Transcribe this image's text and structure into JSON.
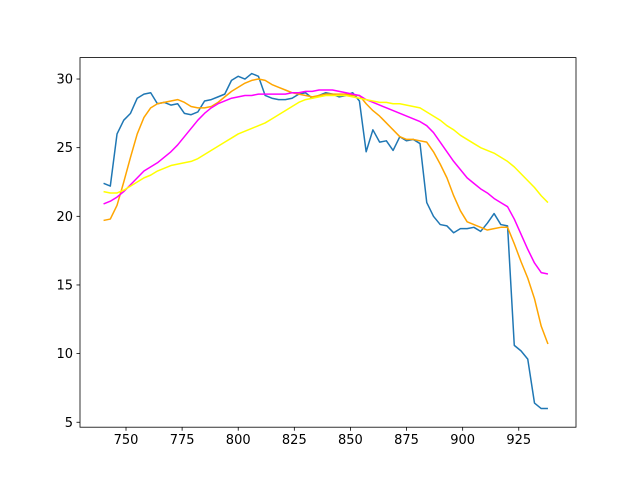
{
  "chart_data": {
    "type": "line",
    "x": [
      740,
      743,
      746,
      749,
      752,
      755,
      758,
      761,
      764,
      767,
      770,
      773,
      776,
      779,
      782,
      785,
      788,
      791,
      794,
      797,
      800,
      803,
      806,
      809,
      812,
      815,
      818,
      821,
      824,
      827,
      830,
      833,
      836,
      839,
      842,
      845,
      848,
      851,
      854,
      857,
      860,
      863,
      866,
      869,
      872,
      875,
      878,
      881,
      884,
      887,
      890,
      893,
      896,
      899,
      902,
      905,
      908,
      911,
      914,
      917,
      920,
      923,
      926,
      929,
      932,
      935,
      938
    ],
    "series": [
      {
        "color": "#1f77b4",
        "values": [
          22.4,
          22.2,
          26.0,
          27.0,
          27.5,
          28.6,
          28.9,
          29.0,
          28.2,
          28.3,
          28.1,
          28.2,
          27.5,
          27.4,
          27.6,
          28.4,
          28.5,
          28.7,
          28.9,
          29.9,
          30.2,
          30.0,
          30.4,
          30.2,
          28.8,
          28.6,
          28.5,
          28.5,
          28.6,
          28.9,
          29.0,
          28.6,
          28.8,
          29.0,
          28.9,
          28.7,
          28.8,
          29.0,
          28.4,
          24.7,
          26.3,
          25.4,
          25.5,
          24.8,
          25.8,
          25.5,
          25.6,
          25.3,
          21.0,
          20.0,
          19.4,
          19.3,
          18.8,
          19.1,
          19.1,
          19.2,
          18.9,
          19.5,
          20.2,
          19.4,
          19.3,
          10.6,
          10.2,
          9.6,
          6.4,
          6.0,
          6.0
        ]
      },
      {
        "color": "#ffa500",
        "values": [
          19.7,
          19.8,
          20.8,
          22.5,
          24.3,
          26.0,
          27.2,
          27.9,
          28.2,
          28.3,
          28.4,
          28.5,
          28.3,
          28.0,
          27.9,
          27.9,
          28.0,
          28.3,
          28.7,
          29.1,
          29.4,
          29.7,
          29.9,
          30.0,
          29.9,
          29.6,
          29.4,
          29.2,
          29.0,
          28.9,
          28.8,
          28.7,
          28.8,
          28.9,
          28.9,
          28.9,
          28.9,
          28.8,
          28.8,
          28.2,
          27.7,
          27.3,
          26.8,
          26.3,
          25.8,
          25.6,
          25.6,
          25.5,
          25.4,
          24.7,
          23.8,
          22.8,
          21.5,
          20.4,
          19.6,
          19.4,
          19.2,
          19.0,
          19.1,
          19.2,
          19.2,
          18.0,
          16.7,
          15.5,
          14.0,
          12.0,
          10.7
        ]
      },
      {
        "color": "#ff00ff",
        "values": [
          20.9,
          21.1,
          21.4,
          21.8,
          22.3,
          22.8,
          23.3,
          23.6,
          23.9,
          24.3,
          24.7,
          25.2,
          25.8,
          26.4,
          27.0,
          27.5,
          27.9,
          28.2,
          28.4,
          28.6,
          28.7,
          28.8,
          28.8,
          28.9,
          28.9,
          28.9,
          28.9,
          28.9,
          29.0,
          29.0,
          29.1,
          29.1,
          29.2,
          29.2,
          29.2,
          29.1,
          29.0,
          28.9,
          28.8,
          28.5,
          28.3,
          28.1,
          27.9,
          27.7,
          27.5,
          27.3,
          27.1,
          26.9,
          26.6,
          26.1,
          25.4,
          24.7,
          24.0,
          23.4,
          22.8,
          22.4,
          22.0,
          21.7,
          21.3,
          21.0,
          20.7,
          19.8,
          18.7,
          17.6,
          16.6,
          15.9,
          15.8
        ]
      },
      {
        "color": "#ffff00",
        "values": [
          21.8,
          21.7,
          21.7,
          21.9,
          22.2,
          22.5,
          22.8,
          23.0,
          23.3,
          23.5,
          23.7,
          23.8,
          23.9,
          24.0,
          24.2,
          24.5,
          24.8,
          25.1,
          25.4,
          25.7,
          26.0,
          26.2,
          26.4,
          26.6,
          26.8,
          27.1,
          27.4,
          27.7,
          28.0,
          28.3,
          28.5,
          28.6,
          28.7,
          28.8,
          28.8,
          28.8,
          28.8,
          28.7,
          28.6,
          28.5,
          28.4,
          28.3,
          28.3,
          28.2,
          28.2,
          28.1,
          28.0,
          27.9,
          27.6,
          27.3,
          27.0,
          26.6,
          26.3,
          25.9,
          25.6,
          25.3,
          25.0,
          24.8,
          24.6,
          24.3,
          24.0,
          23.6,
          23.1,
          22.6,
          22.1,
          21.5,
          21.0
        ]
      }
    ],
    "xlim": [
      729.5,
      950.5
    ],
    "ylim": [
      4.64,
      31.56
    ],
    "xticks": [
      750,
      775,
      800,
      825,
      850,
      875,
      900,
      925
    ],
    "yticks": [
      5,
      10,
      15,
      20,
      25,
      30
    ]
  }
}
